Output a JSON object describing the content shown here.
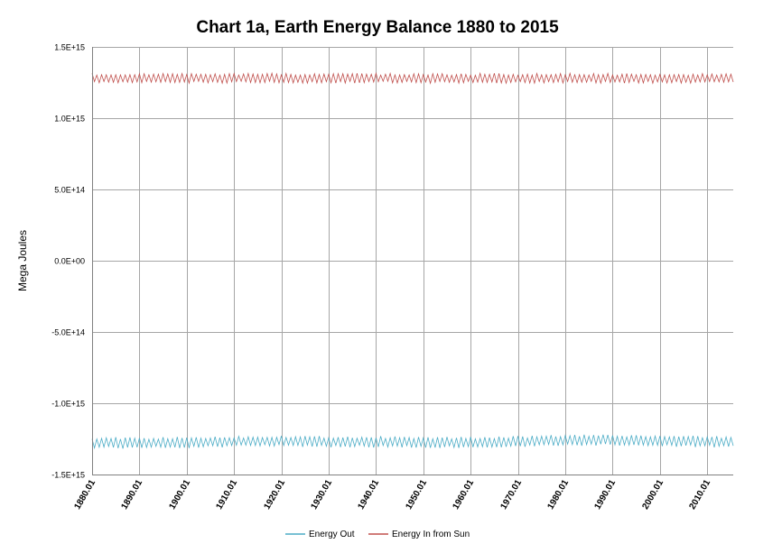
{
  "chart_data": {
    "type": "line",
    "title": "Chart 1a, Earth Energy Balance 1880 to 2015",
    "xlabel": "",
    "ylabel": "Mega Joules",
    "ylim": [
      -1500000000000000.0,
      1500000000000000.0
    ],
    "y_ticks": [
      {
        "value": 1500000000000000.0,
        "label": "1.5E+15"
      },
      {
        "value": 1000000000000000.0,
        "label": "1.0E+15"
      },
      {
        "value": 500000000000000.0,
        "label": "5.0E+14"
      },
      {
        "value": 0,
        "label": "0.0E+00"
      },
      {
        "value": -500000000000000.0,
        "label": "-5.0E+14"
      },
      {
        "value": -1000000000000000.0,
        "label": "-1.0E+15"
      },
      {
        "value": -1500000000000000.0,
        "label": "-1.5E+15"
      }
    ],
    "xlim": [
      1880.0,
      2015.5
    ],
    "x_ticks": [
      {
        "value": 1880,
        "label": "1880.01"
      },
      {
        "value": 1890,
        "label": "1890.01"
      },
      {
        "value": 1900,
        "label": "1900.01"
      },
      {
        "value": 1910,
        "label": "1910.01"
      },
      {
        "value": 1920,
        "label": "1920.01"
      },
      {
        "value": 1930,
        "label": "1930.01"
      },
      {
        "value": 1940,
        "label": "1940.01"
      },
      {
        "value": 1950,
        "label": "1950.01"
      },
      {
        "value": 1960,
        "label": "1960.01"
      },
      {
        "value": 1970,
        "label": "1970.01"
      },
      {
        "value": 1980,
        "label": "1980.01"
      },
      {
        "value": 1990,
        "label": "1990.01"
      },
      {
        "value": 2000,
        "label": "2000.01"
      },
      {
        "value": 2010,
        "label": "2010.01"
      }
    ],
    "grid": true,
    "legend": "bottom",
    "series": [
      {
        "name": "Energy Out",
        "color": "#4bacc6",
        "cycle_years": 1,
        "samples_per_cycle": 2,
        "baseline_x": [
          1880,
          1890,
          1900,
          1910,
          1920,
          1930,
          1940,
          1950,
          1960,
          1970,
          1980,
          1990,
          2000,
          2010,
          2015
        ],
        "baseline_y": [
          -1275000000000000.0,
          -1280000000000000.0,
          -1275000000000000.0,
          -1270000000000000.0,
          -1265000000000000.0,
          -1270000000000000.0,
          -1270000000000000.0,
          -1275000000000000.0,
          -1275000000000000.0,
          -1270000000000000.0,
          -1260000000000000.0,
          -1260000000000000.0,
          -1265000000000000.0,
          -1270000000000000.0,
          -1270000000000000.0
        ],
        "amplitude": 40000000000000.0
      },
      {
        "name": "Energy In from Sun",
        "color": "#c0504d",
        "cycle_years": 1,
        "samples_per_cycle": 2,
        "baseline_x": [
          1880,
          2015
        ],
        "baseline_y": [
          1280000000000000.0,
          1280000000000000.0
        ],
        "amplitude": 35000000000000.0
      }
    ]
  }
}
